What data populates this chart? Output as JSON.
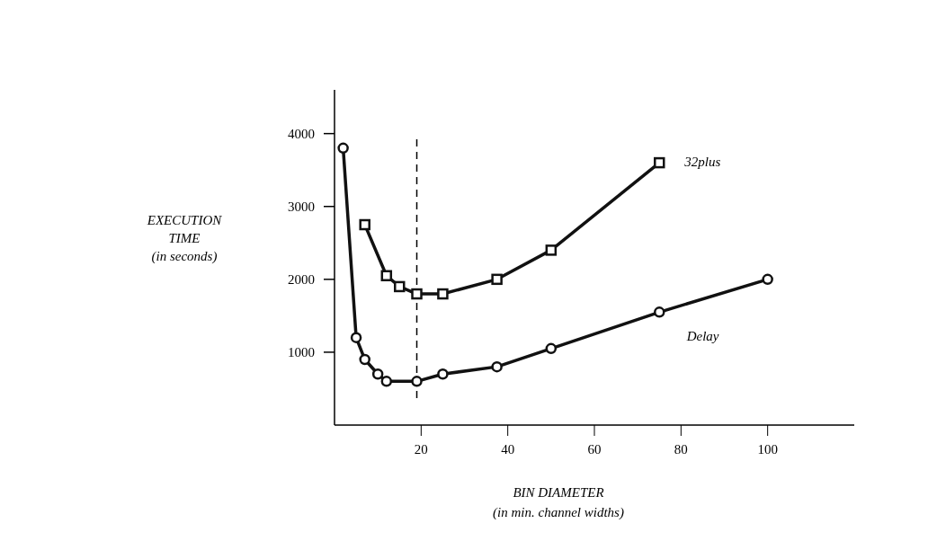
{
  "chart_data": {
    "type": "line",
    "xlabel": "BIN DIAMETER\n(in min. channel widths)",
    "ylabel": "EXECUTION\nTIME\n(in seconds)",
    "xlim": [
      0,
      120
    ],
    "xticks": [
      20,
      40,
      60,
      80,
      100
    ],
    "ylim": [
      0,
      4600
    ],
    "yticks": [
      1000,
      2000,
      3000,
      4000
    ],
    "grid": false,
    "legend": false,
    "line_style": "solid",
    "ref_lines": [
      {
        "axis": "x",
        "value": 19,
        "line_style": "dashed",
        "color": "#000000"
      }
    ],
    "series": [
      {
        "name": "32plus",
        "color": "#111111",
        "marker": "square",
        "x": [
          7,
          12,
          15,
          19,
          25,
          37.5,
          50,
          75
        ],
        "values": [
          2750,
          2050,
          1900,
          1800,
          1800,
          2000,
          2400,
          3600
        ]
      },
      {
        "name": "Delay",
        "color": "#111111",
        "marker": "circle",
        "x": [
          2,
          5,
          7,
          10,
          12,
          19,
          25,
          37.5,
          50,
          75,
          100
        ],
        "values": [
          3800,
          1200,
          900,
          700,
          600,
          600,
          700,
          800,
          1050,
          1550,
          2000
        ]
      }
    ]
  }
}
